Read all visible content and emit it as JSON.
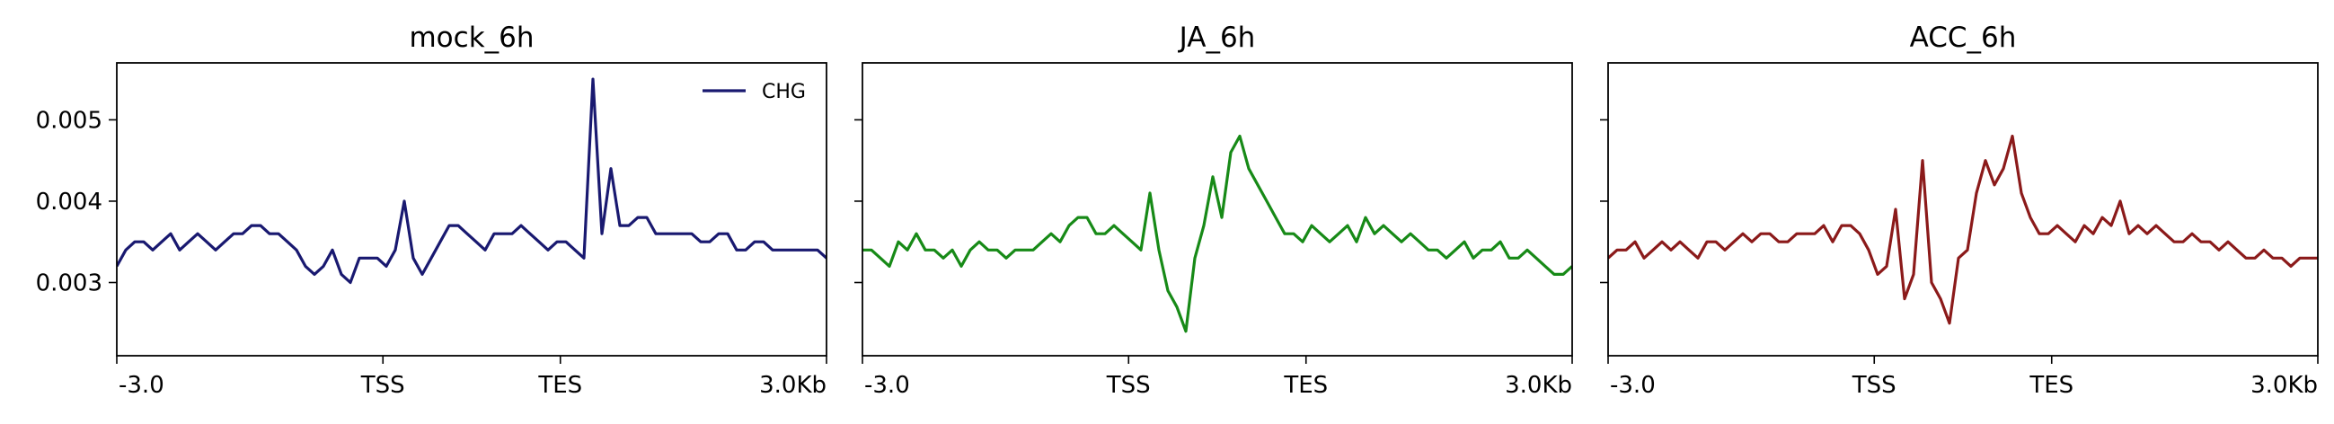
{
  "chart_data": [
    {
      "type": "line",
      "title": "mock_6h",
      "x_tick_labels": [
        "-3.0",
        "TSS",
        "TES",
        "3.0Kb"
      ],
      "y_tick_labels": [
        "0.003",
        "0.004",
        "0.005"
      ],
      "y_ticks": [
        0.003,
        0.004,
        0.005
      ],
      "ylim": [
        0.0021,
        0.0057
      ],
      "legend": "top-right",
      "grid": false,
      "series": [
        {
          "name": "CHG",
          "color": "#191970",
          "values": [
            0.0032,
            0.0034,
            0.0035,
            0.0035,
            0.0034,
            0.0035,
            0.0036,
            0.0034,
            0.0035,
            0.0036,
            0.0035,
            0.0034,
            0.0035,
            0.0036,
            0.0036,
            0.0037,
            0.0037,
            0.0036,
            0.0036,
            0.0035,
            0.0034,
            0.0032,
            0.0031,
            0.0032,
            0.0034,
            0.0031,
            0.003,
            0.0033,
            0.0033,
            0.0033,
            0.0032,
            0.0034,
            0.004,
            0.0033,
            0.0031,
            0.0033,
            0.0035,
            0.0037,
            0.0037,
            0.0036,
            0.0035,
            0.0034,
            0.0036,
            0.0036,
            0.0036,
            0.0037,
            0.0036,
            0.0035,
            0.0034,
            0.0035,
            0.0035,
            0.0034,
            0.0033,
            0.0055,
            0.0036,
            0.0044,
            0.0037,
            0.0037,
            0.0038,
            0.0038,
            0.0036,
            0.0036,
            0.0036,
            0.0036,
            0.0036,
            0.0035,
            0.0035,
            0.0036,
            0.0036,
            0.0034,
            0.0034,
            0.0035,
            0.0035,
            0.0034,
            0.0034,
            0.0034,
            0.0034,
            0.0034,
            0.0034,
            0.0033
          ]
        }
      ]
    },
    {
      "type": "line",
      "title": "JA_6h",
      "x_tick_labels": [
        "-3.0",
        "TSS",
        "TES",
        "3.0Kb"
      ],
      "y_ticks": [
        0.003,
        0.004,
        0.005
      ],
      "ylim": [
        0.0021,
        0.0057
      ],
      "grid": false,
      "series": [
        {
          "color": "#178a17",
          "values": [
            0.0034,
            0.0034,
            0.0033,
            0.0032,
            0.0035,
            0.0034,
            0.0036,
            0.0034,
            0.0034,
            0.0033,
            0.0034,
            0.0032,
            0.0034,
            0.0035,
            0.0034,
            0.0034,
            0.0033,
            0.0034,
            0.0034,
            0.0034,
            0.0035,
            0.0036,
            0.0035,
            0.0037,
            0.0038,
            0.0038,
            0.0036,
            0.0036,
            0.0037,
            0.0036,
            0.0035,
            0.0034,
            0.0041,
            0.0034,
            0.0029,
            0.0027,
            0.0024,
            0.0033,
            0.0037,
            0.0043,
            0.0038,
            0.0046,
            0.0048,
            0.0044,
            0.0042,
            0.004,
            0.0038,
            0.0036,
            0.0036,
            0.0035,
            0.0037,
            0.0036,
            0.0035,
            0.0036,
            0.0037,
            0.0035,
            0.0038,
            0.0036,
            0.0037,
            0.0036,
            0.0035,
            0.0036,
            0.0035,
            0.0034,
            0.0034,
            0.0033,
            0.0034,
            0.0035,
            0.0033,
            0.0034,
            0.0034,
            0.0035,
            0.0033,
            0.0033,
            0.0034,
            0.0033,
            0.0032,
            0.0031,
            0.0031,
            0.0032
          ]
        }
      ]
    },
    {
      "type": "line",
      "title": "ACC_6h",
      "x_tick_labels": [
        "-3.0",
        "TSS",
        "TES",
        "3.0Kb"
      ],
      "y_ticks": [
        0.003,
        0.004,
        0.005
      ],
      "ylim": [
        0.0021,
        0.0057
      ],
      "grid": false,
      "series": [
        {
          "color": "#8b1a1a",
          "values": [
            0.0033,
            0.0034,
            0.0034,
            0.0035,
            0.0033,
            0.0034,
            0.0035,
            0.0034,
            0.0035,
            0.0034,
            0.0033,
            0.0035,
            0.0035,
            0.0034,
            0.0035,
            0.0036,
            0.0035,
            0.0036,
            0.0036,
            0.0035,
            0.0035,
            0.0036,
            0.0036,
            0.0036,
            0.0037,
            0.0035,
            0.0037,
            0.0037,
            0.0036,
            0.0034,
            0.0031,
            0.0032,
            0.0039,
            0.0028,
            0.0031,
            0.0045,
            0.003,
            0.0028,
            0.0025,
            0.0033,
            0.0034,
            0.0041,
            0.0045,
            0.0042,
            0.0044,
            0.0048,
            0.0041,
            0.0038,
            0.0036,
            0.0036,
            0.0037,
            0.0036,
            0.0035,
            0.0037,
            0.0036,
            0.0038,
            0.0037,
            0.004,
            0.0036,
            0.0037,
            0.0036,
            0.0037,
            0.0036,
            0.0035,
            0.0035,
            0.0036,
            0.0035,
            0.0035,
            0.0034,
            0.0035,
            0.0034,
            0.0033,
            0.0033,
            0.0034,
            0.0033,
            0.0033,
            0.0032,
            0.0033,
            0.0033,
            0.0033
          ]
        }
      ]
    }
  ]
}
